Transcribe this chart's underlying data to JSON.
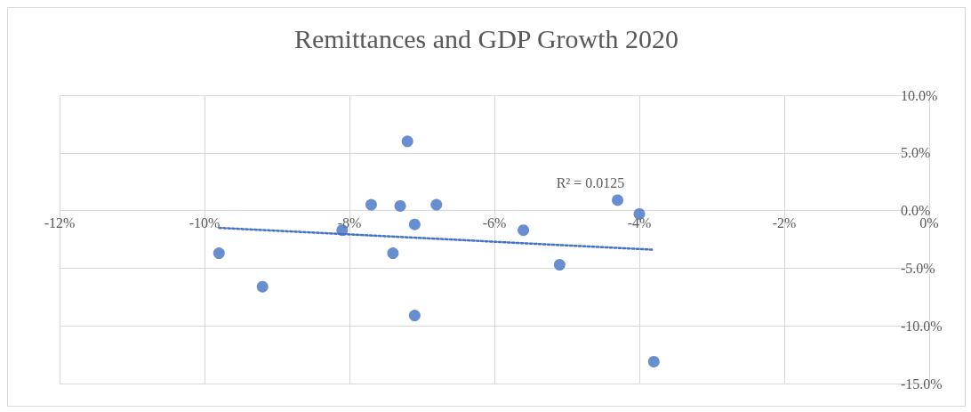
{
  "chart_data": {
    "type": "scatter",
    "title": "Remittances and GDP Growth 2020",
    "xlim": [
      -12,
      0
    ],
    "xticks": [
      {
        "value": -12,
        "label": "-12%"
      },
      {
        "value": -10,
        "label": "-10%"
      },
      {
        "value": -8,
        "label": "-8%"
      },
      {
        "value": -6,
        "label": "-6%"
      },
      {
        "value": -4,
        "label": "-4%"
      },
      {
        "value": -2,
        "label": "-2%"
      },
      {
        "value": 0,
        "label": "0%"
      }
    ],
    "ylim": [
      -15,
      10
    ],
    "yticks": [
      {
        "value": -15,
        "label": "-15.0%"
      },
      {
        "value": -10,
        "label": "-10.0%"
      },
      {
        "value": -5,
        "label": "-5.0%"
      },
      {
        "value": 0,
        "label": "0.0%"
      },
      {
        "value": 5,
        "label": "5.0%"
      },
      {
        "value": 10,
        "label": "10.0%"
      }
    ],
    "grid": true,
    "marker": "circle",
    "series": [
      {
        "color": "#4472c4",
        "x": [
          -9.8,
          -9.2,
          -8.1,
          -7.7,
          -7.4,
          -7.3,
          -7.2,
          -7.1,
          -7.1,
          -6.8,
          -5.6,
          -5.1,
          -4.3,
          -4.0,
          -3.8
        ],
        "values": [
          -3.7,
          -6.6,
          -1.7,
          0.5,
          -3.7,
          0.4,
          6.0,
          -1.2,
          -9.1,
          0.5,
          -1.7,
          -4.7,
          0.9,
          -0.3,
          -13.1
        ]
      },
      {
        "type": "line",
        "color": "#4472c4",
        "line_style": "dotted",
        "marker": "none",
        "x": [
          -9.8,
          -3.8
        ],
        "values": [
          -1.5,
          -3.4
        ]
      }
    ],
    "annotations": [
      "R² = 0.0125"
    ]
  }
}
